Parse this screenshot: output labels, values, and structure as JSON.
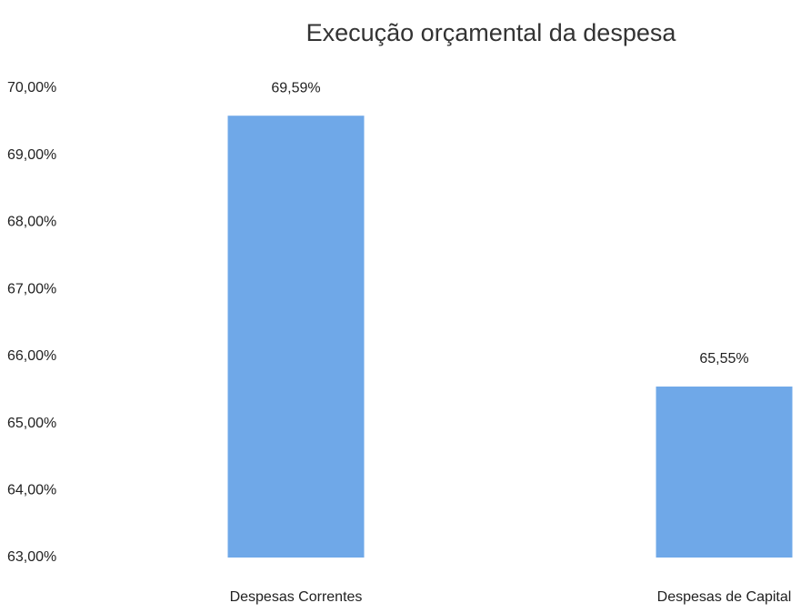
{
  "chart_data": {
    "type": "bar",
    "title": "Execução orçamental da despesa",
    "categories": [
      "Despesas Correntes",
      "Despesas de Capital"
    ],
    "values": [
      69.59,
      65.55
    ],
    "value_labels": [
      "69,59%",
      "65,55%"
    ],
    "color": "#6fa8e8",
    "ylim": [
      63,
      70
    ],
    "yticks": [
      {
        "value": 63,
        "label": "63,00%"
      },
      {
        "value": 64,
        "label": "64,00%"
      },
      {
        "value": 65,
        "label": "65,00%"
      },
      {
        "value": 66,
        "label": "66,00%"
      },
      {
        "value": 67,
        "label": "67,00%"
      },
      {
        "value": 68,
        "label": "68,00%"
      },
      {
        "value": 69,
        "label": "69,00%"
      },
      {
        "value": 70,
        "label": "70,00%"
      }
    ],
    "grid": false
  }
}
